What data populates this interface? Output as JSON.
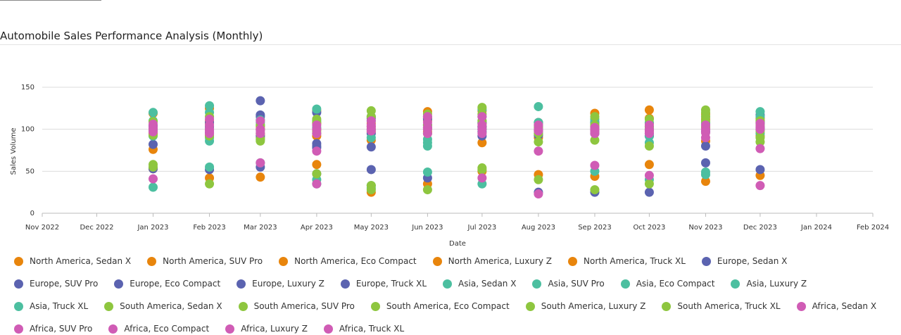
{
  "chart_data": {
    "type": "scatter",
    "title": "Automobile Sales Performance Analysis (Monthly)",
    "x_label": "Date",
    "y_label": "Sales Volume",
    "x": [
      "2023-01",
      "2023-02",
      "2023-03",
      "2023-04",
      "2023-05",
      "2023-06",
      "2023-07",
      "2023-08",
      "2023-09",
      "2023-10",
      "2023-11",
      "2023-12"
    ],
    "xlim": [
      "2022-11",
      "2024-02"
    ],
    "xticks": [
      {
        "value": "2022-11",
        "label": "Nov 2022"
      },
      {
        "value": "2022-12",
        "label": "Dec 2022"
      },
      {
        "value": "2023-01",
        "label": "Jan 2023"
      },
      {
        "value": "2023-02",
        "label": "Feb 2023"
      },
      {
        "value": "2023-03",
        "label": "Mar 2023"
      },
      {
        "value": "2023-04",
        "label": "Apr 2023"
      },
      {
        "value": "2023-05",
        "label": "May 2023"
      },
      {
        "value": "2023-06",
        "label": "Jun 2023"
      },
      {
        "value": "2023-07",
        "label": "Jul 2023"
      },
      {
        "value": "2023-08",
        "label": "Aug 2023"
      },
      {
        "value": "2023-09",
        "label": "Sep 2023"
      },
      {
        "value": "2023-10",
        "label": "Oct 2023"
      },
      {
        "value": "2023-11",
        "label": "Nov 2023"
      },
      {
        "value": "2023-12",
        "label": "Dec 2023"
      },
      {
        "value": "2024-01",
        "label": "Jan 2024"
      },
      {
        "value": "2024-02",
        "label": "Feb 2024"
      }
    ],
    "ylim": [
      0,
      150
    ],
    "yticks": [
      0,
      50,
      100,
      150
    ],
    "grid": true,
    "series": [
      {
        "name": "North America, Sedan X",
        "color": "#e8850c",
        "values": [
          119,
          125,
          103,
          122,
          107,
          121,
          122,
          108,
          119,
          123,
          118,
          113
        ]
      },
      {
        "name": "North America, SUV Pro",
        "color": "#e8850c",
        "values": [
          97,
          110,
          100,
          107,
          103,
          113,
          107,
          105,
          108,
          113,
          112,
          108
        ]
      },
      {
        "name": "North America, Eco Compact",
        "color": "#e8850c",
        "values": [
          95,
          107,
          93,
          100,
          97,
          97,
          103,
          93,
          103,
          107,
          103,
          100
        ]
      },
      {
        "name": "North America, Luxury Z",
        "color": "#e8850c",
        "values": [
          76,
          93,
          90,
          92,
          87,
          35,
          84,
          90,
          100,
          98,
          86,
          92
        ]
      },
      {
        "name": "North America, Truck XL",
        "color": "#e8850c",
        "values": [
          53,
          42,
          43,
          58,
          25,
          110,
          50,
          46,
          44,
          58,
          38,
          45
        ]
      },
      {
        "name": "Europe, Sedan X",
        "color": "#5b63b0",
        "values": [
          104,
          103,
          134,
          120,
          113,
          112,
          108,
          103,
          108,
          95,
          107,
          117
        ]
      },
      {
        "name": "Europe, SUV Pro",
        "color": "#5b63b0",
        "values": [
          100,
          96,
          117,
          83,
          95,
          105,
          97,
          98,
          98,
          92,
          100,
          110
        ]
      },
      {
        "name": "Europe, Eco Compact",
        "color": "#5b63b0",
        "values": [
          82,
          100,
          115,
          80,
          79,
          115,
          92,
          93,
          95,
          25,
          80,
          102
        ]
      },
      {
        "name": "Europe, Luxury Z",
        "color": "#5b63b0",
        "values": [
          53,
          52,
          55,
          78,
          52,
          42,
          103,
          25,
          25,
          92,
          60,
          52
        ]
      },
      {
        "name": "Europe, Truck XL",
        "color": "#5b63b0",
        "values": [
          98,
          108,
          92,
          47,
          115,
          102,
          100,
          108,
          103,
          100,
          97,
          107
        ]
      },
      {
        "name": "Asia, Sedan X",
        "color": "#4cbfa0",
        "values": [
          120,
          128,
          111,
          124,
          110,
          88,
          124,
          127,
          109,
          108,
          49,
          121
        ]
      },
      {
        "name": "Asia, SUV Pro",
        "color": "#4cbfa0",
        "values": [
          31,
          86,
          60,
          40,
          30,
          80,
          35,
          108,
          50,
          84,
          46,
          115
        ]
      },
      {
        "name": "Asia, Eco Compact",
        "color": "#4cbfa0",
        "values": [
          100,
          55,
          108,
          35,
          33,
          49,
          110,
          105,
          105,
          40,
          115,
          108
        ]
      },
      {
        "name": "Asia, Luxury Z",
        "color": "#4cbfa0",
        "values": [
          110,
          120,
          105,
          110,
          100,
          105,
          115,
          100,
          112,
          103,
          108,
          100
        ]
      },
      {
        "name": "Asia, Truck XL",
        "color": "#4cbfa0",
        "values": [
          92,
          90,
          88,
          102,
          90,
          84,
          100,
          95,
          100,
          92,
          105,
          95
        ]
      },
      {
        "name": "South America, Sedan X",
        "color": "#8ec63f",
        "values": [
          109,
          92,
          86,
          108,
          122,
          95,
          126,
          85,
          87,
          80,
          123,
          85
        ]
      },
      {
        "name": "South America, SUV Pro",
        "color": "#8ec63f",
        "values": [
          93,
          35,
          88,
          47,
          33,
          28,
          54,
          40,
          28,
          35,
          120,
          90
        ]
      },
      {
        "name": "South America, Eco Compact",
        "color": "#8ec63f",
        "values": [
          58,
          100,
          95,
          98,
          28,
          100,
          52,
          95,
          103,
          103,
          110,
          105
        ]
      },
      {
        "name": "South America, Luxury Z",
        "color": "#8ec63f",
        "values": [
          55,
          115,
          105,
          112,
          115,
          118,
          118,
          102,
          115,
          112,
          115,
          110
        ]
      },
      {
        "name": "South America, Truck XL",
        "color": "#8ec63f",
        "values": [
          100,
          105,
          100,
          95,
          100,
          105,
          110,
          98,
          105,
          100,
          102,
          98
        ]
      },
      {
        "name": "Africa, Sedan X",
        "color": "#d05cb5",
        "values": [
          41,
          112,
          60,
          74,
          105,
          115,
          115,
          74,
          57,
          45,
          90,
          77
        ]
      },
      {
        "name": "Africa, SUV Pro",
        "color": "#d05cb5",
        "values": [
          97,
          105,
          100,
          35,
          98,
          102,
          42,
          23,
          100,
          100,
          96,
          33
        ]
      },
      {
        "name": "Africa, Eco Compact",
        "color": "#d05cb5",
        "values": [
          100,
          98,
          110,
          95,
          110,
          95,
          100,
          100,
          95,
          105,
          100,
          103
        ]
      },
      {
        "name": "Africa, Luxury Z",
        "color": "#d05cb5",
        "values": [
          106,
          95,
          98,
          105,
          103,
          108,
          95,
          105,
          98,
          95,
          105,
          100
        ]
      },
      {
        "name": "Africa, Truck XL",
        "color": "#d05cb5",
        "values": [
          102,
          100,
          95,
          100,
          100,
          100,
          105,
          98,
          102,
          98,
          100,
          107
        ]
      }
    ]
  }
}
